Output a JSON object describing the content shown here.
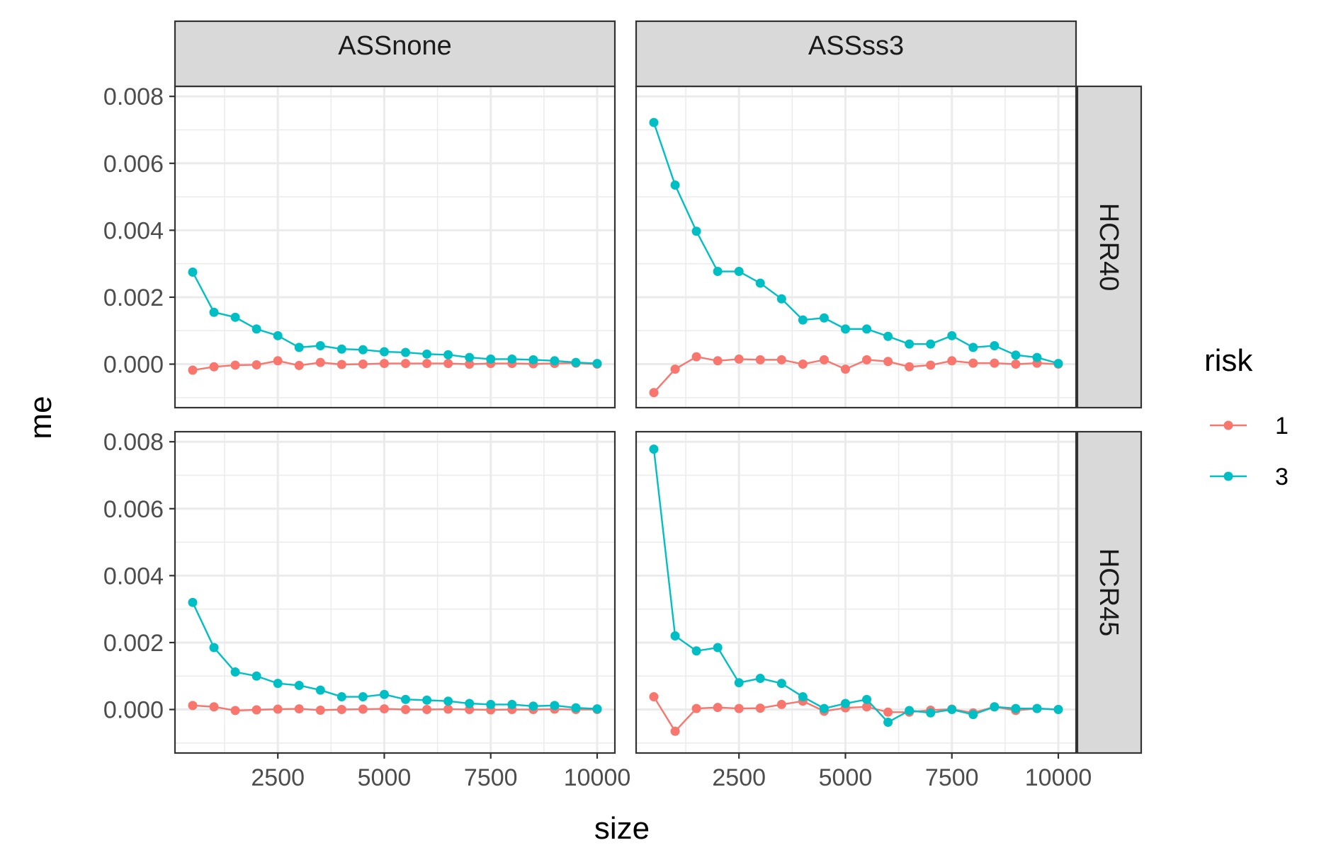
{
  "chart_data": {
    "type": "line",
    "xlabel": "size",
    "ylabel": "me",
    "xlim": [
      0,
      10000
    ],
    "ylim": [
      -0.0013,
      0.0083
    ],
    "x_ticks": [
      2500,
      5000,
      7500,
      10000
    ],
    "y_ticks": [
      0.0,
      0.002,
      0.004,
      0.006,
      0.008
    ],
    "y_tick_labels": [
      "0.000",
      "0.002",
      "0.004",
      "0.006",
      "0.008"
    ],
    "grid": true,
    "legend": {
      "title": "risk",
      "position": "right",
      "entries": [
        {
          "label": "1",
          "color": "#F8766D"
        },
        {
          "label": "3",
          "color": "#00BFC4"
        }
      ]
    },
    "facet_columns": [
      "ASSnone",
      "ASSss3"
    ],
    "facet_rows": [
      "HCR40",
      "HCR45"
    ],
    "x": [
      500,
      1000,
      1500,
      2000,
      2500,
      3000,
      3500,
      4000,
      4500,
      5000,
      5500,
      6000,
      6500,
      7000,
      7500,
      8000,
      8500,
      9000,
      9500,
      10000
    ],
    "panels": [
      {
        "col": "ASSnone",
        "row": "HCR40",
        "series": [
          {
            "name": "1",
            "values": [
              -0.00018,
              -8e-05,
              -3e-05,
              -2e-05,
              0.0001,
              -4e-05,
              5e-05,
              -1e-05,
              0.0,
              2e-05,
              2e-05,
              2e-05,
              2e-05,
              0.0,
              2e-05,
              2e-05,
              1e-05,
              2e-05,
              3e-05,
              0.0
            ]
          },
          {
            "name": "3",
            "values": [
              0.00275,
              0.00155,
              0.0014,
              0.00105,
              0.00085,
              0.0005,
              0.00055,
              0.00045,
              0.00043,
              0.00037,
              0.00035,
              0.0003,
              0.00028,
              0.0002,
              0.00015,
              0.00015,
              0.00013,
              0.0001,
              5e-05,
              2e-05
            ]
          }
        ]
      },
      {
        "col": "ASSss3",
        "row": "HCR40",
        "series": [
          {
            "name": "1",
            "values": [
              -0.00085,
              -0.00015,
              0.00022,
              0.0001,
              0.00015,
              0.00013,
              0.00013,
              0.0,
              0.00013,
              -0.00015,
              0.00013,
              8e-05,
              -8e-05,
              -3e-05,
              0.0001,
              3e-05,
              3e-05,
              0.0,
              3e-05,
              0.0
            ]
          },
          {
            "name": "3",
            "values": [
              0.00722,
              0.00535,
              0.00397,
              0.00277,
              0.00277,
              0.00242,
              0.00195,
              0.00132,
              0.00138,
              0.00105,
              0.00105,
              0.00083,
              0.0006,
              0.0006,
              0.00085,
              0.0005,
              0.00055,
              0.00027,
              0.0002,
              2e-05
            ]
          }
        ]
      },
      {
        "col": "ASSnone",
        "row": "HCR45",
        "series": [
          {
            "name": "1",
            "values": [
              0.00012,
              8e-05,
              -3e-05,
              -1e-05,
              1e-05,
              2e-05,
              -2e-05,
              0.0,
              1e-05,
              2e-05,
              0.0,
              0.0,
              1e-05,
              0.0,
              -1e-05,
              0.0,
              0.0,
              1e-05,
              0.0,
              0.0
            ]
          },
          {
            "name": "3",
            "values": [
              0.0032,
              0.00185,
              0.00112,
              0.001,
              0.00078,
              0.00072,
              0.00058,
              0.00038,
              0.00038,
              0.00045,
              0.0003,
              0.00028,
              0.00025,
              0.00018,
              0.00015,
              0.00015,
              0.0001,
              0.00012,
              5e-05,
              2e-05
            ]
          }
        ]
      },
      {
        "col": "ASSss3",
        "row": "HCR45",
        "series": [
          {
            "name": "1",
            "values": [
              0.00038,
              -0.00065,
              3e-05,
              6e-05,
              3e-05,
              4e-05,
              0.00015,
              0.00025,
              -5e-05,
              5e-05,
              8e-05,
              -8e-05,
              -8e-05,
              -2e-05,
              1e-05,
              -0.0001,
              8e-05,
              -3e-05,
              3e-05,
              0.0
            ]
          },
          {
            "name": "3",
            "values": [
              0.00778,
              0.0022,
              0.00175,
              0.00185,
              0.0008,
              0.00093,
              0.00078,
              0.00038,
              3e-05,
              0.00018,
              0.0003,
              -0.00038,
              -3e-05,
              -0.0001,
              0.0,
              -0.00015,
              8e-05,
              3e-05,
              3e-05,
              0.0
            ]
          }
        ]
      }
    ]
  }
}
